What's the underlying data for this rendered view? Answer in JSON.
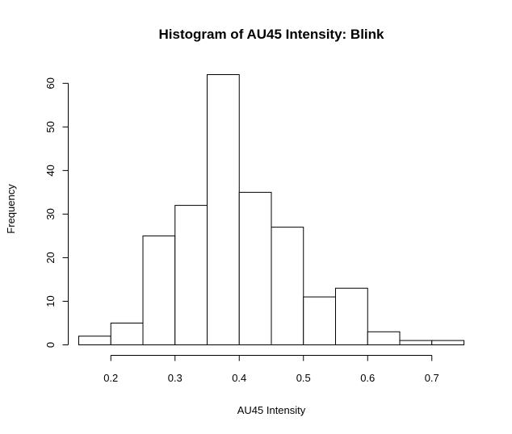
{
  "chart_data": {
    "type": "bar",
    "title": "Histogram of AU45 Intensity: Blink",
    "xlabel": "AU45 Intensity",
    "ylabel": "Frequency",
    "bin_edges": [
      0.15,
      0.2,
      0.25,
      0.3,
      0.35,
      0.4,
      0.45,
      0.5,
      0.55,
      0.6,
      0.65,
      0.7,
      0.75
    ],
    "values": [
      2,
      5,
      25,
      32,
      62,
      35,
      27,
      11,
      13,
      3,
      1,
      1
    ],
    "xlim": [
      0.15,
      0.75
    ],
    "ylim": [
      0,
      62
    ],
    "x_ticks": [
      0.2,
      0.3,
      0.4,
      0.5,
      0.6,
      0.7
    ],
    "x_tick_labels": [
      "0.2",
      "0.3",
      "0.4",
      "0.5",
      "0.6",
      "0.7"
    ],
    "y_ticks": [
      0,
      10,
      20,
      30,
      40,
      50,
      60
    ],
    "y_tick_labels": [
      "0",
      "10",
      "20",
      "30",
      "40",
      "50",
      "60"
    ],
    "grid": false,
    "legend": "none",
    "colors": {
      "bar_fill": "#ffffff",
      "bar_stroke": "#000000"
    }
  }
}
